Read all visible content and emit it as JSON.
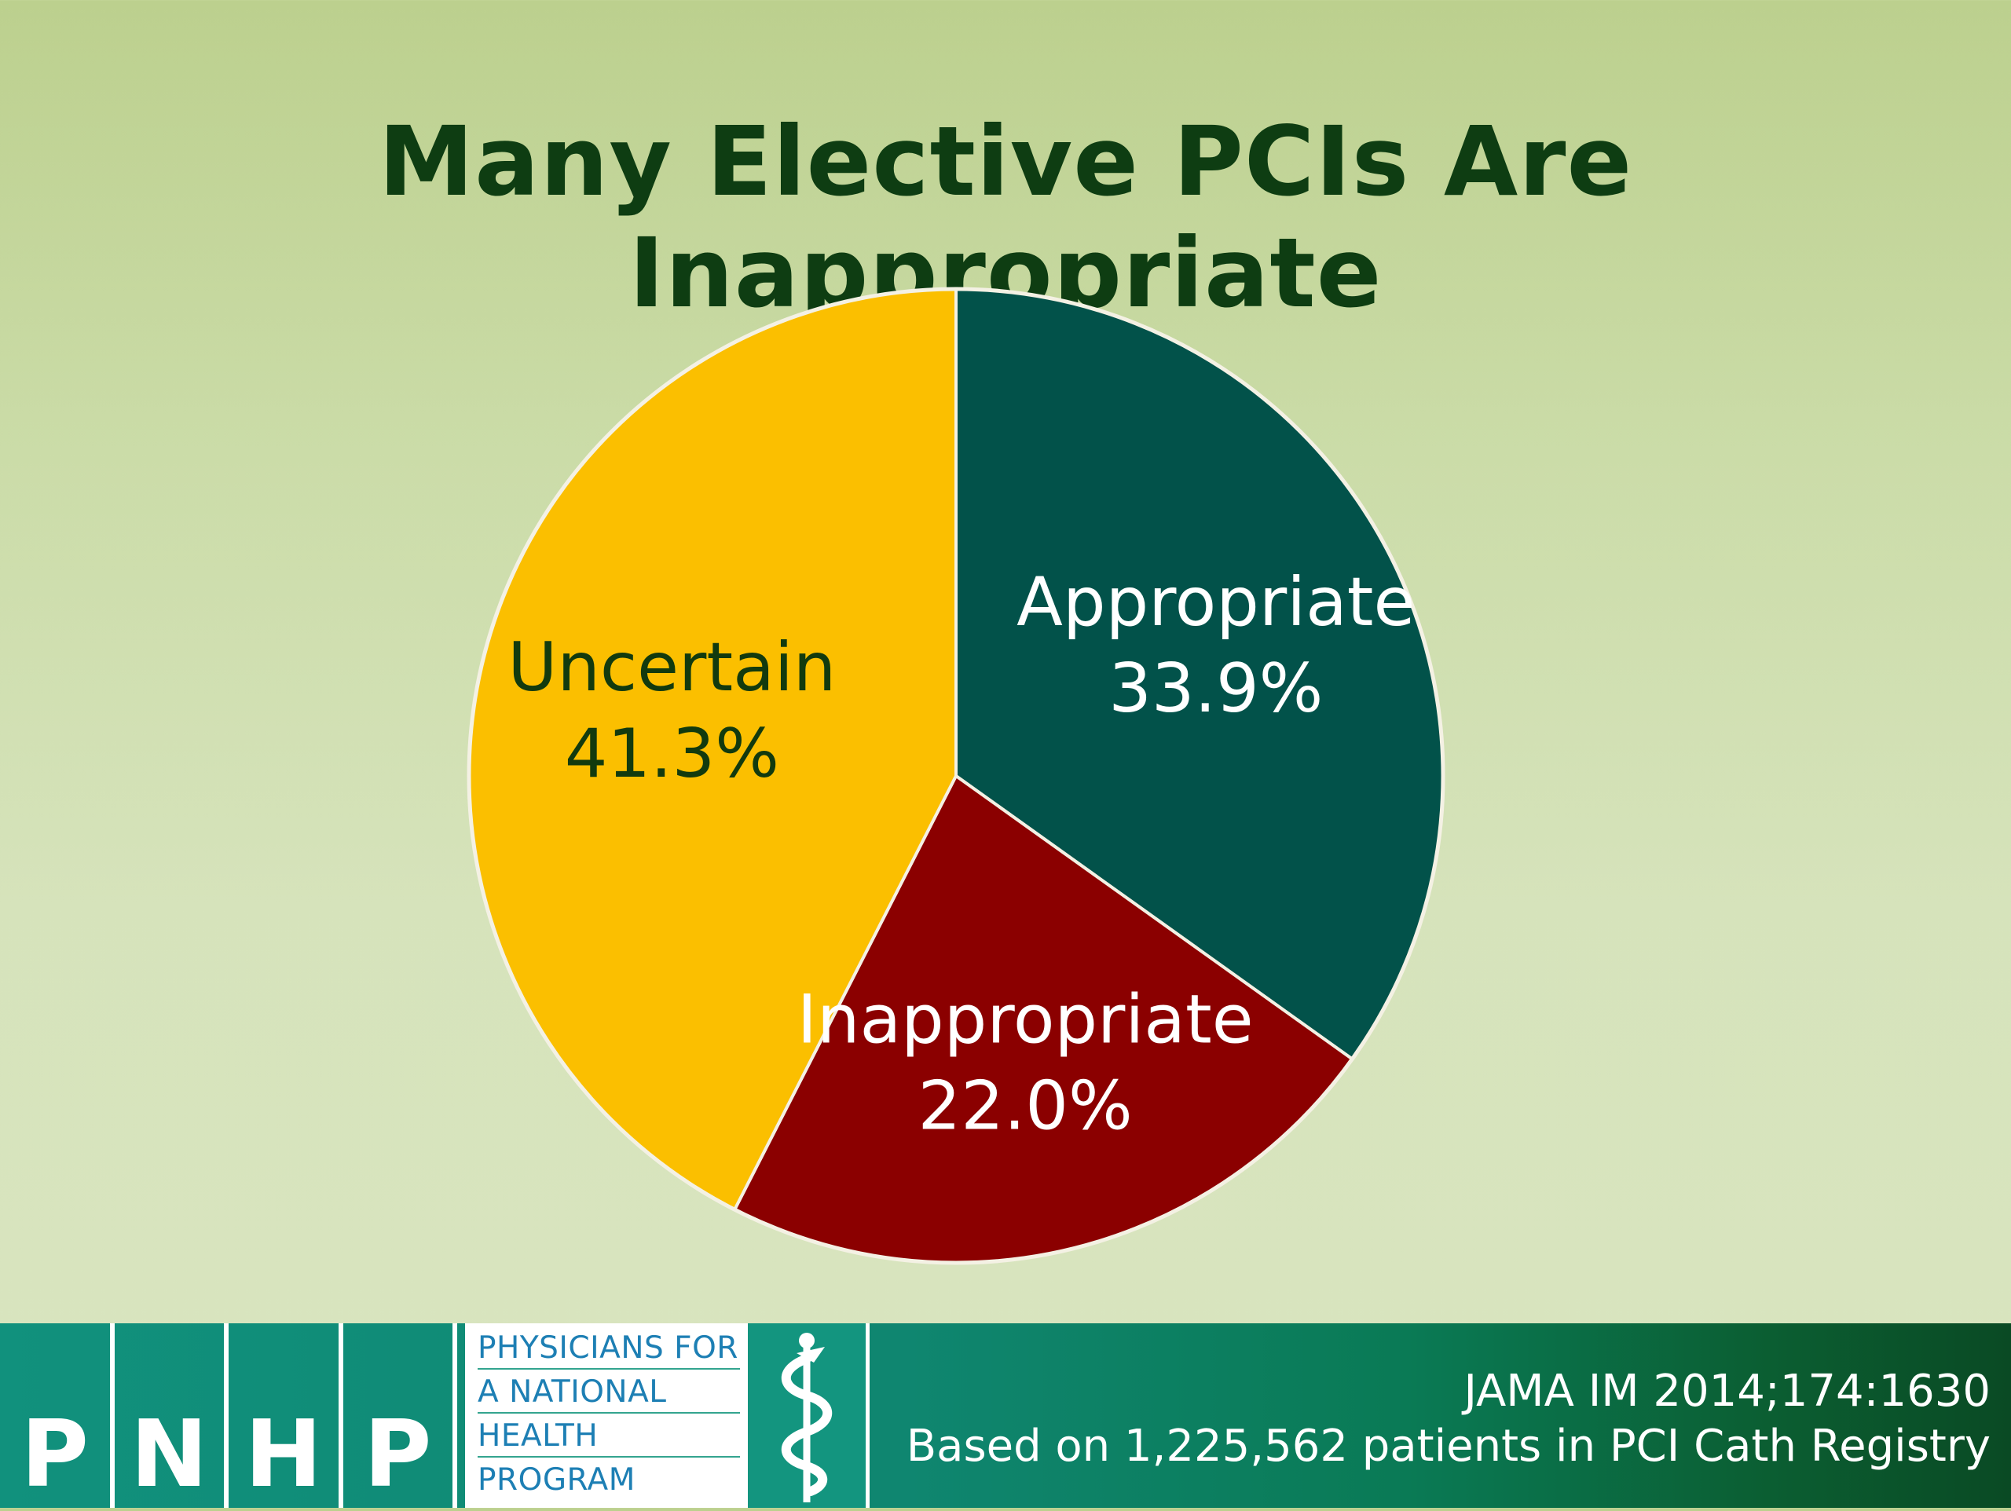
{
  "slide": {
    "title": "Many Elective PCIs Are Inappropriate"
  },
  "chart_data": {
    "type": "pie",
    "slices": [
      {
        "label": "Appropriate",
        "value": 33.9,
        "value_label": "33.9%",
        "color": "#02524a",
        "text_color": "#ffffff"
      },
      {
        "label": "Inappropriate",
        "value": 22.0,
        "value_label": "22.0%",
        "color": "#8b0000",
        "text_color": "#ffffff"
      },
      {
        "label": "Uncertain",
        "value": 41.3,
        "value_label": "41.3%",
        "color": "#fbbf00",
        "text_color": "#123a0e"
      }
    ],
    "start": "12 o'clock",
    "direction": "clockwise"
  },
  "footer": {
    "logo_letters": [
      "P",
      "N",
      "H",
      "P"
    ],
    "wordmark_lines": [
      "PHYSICIANS FOR",
      "A NATIONAL",
      "HEALTH",
      "PROGRAM"
    ],
    "emblem_icon": "caduceus-icon",
    "citation": "JAMA IM 2014;174:1630",
    "note": "Based on 1,225,562 patients in PCI Cath Registry"
  }
}
